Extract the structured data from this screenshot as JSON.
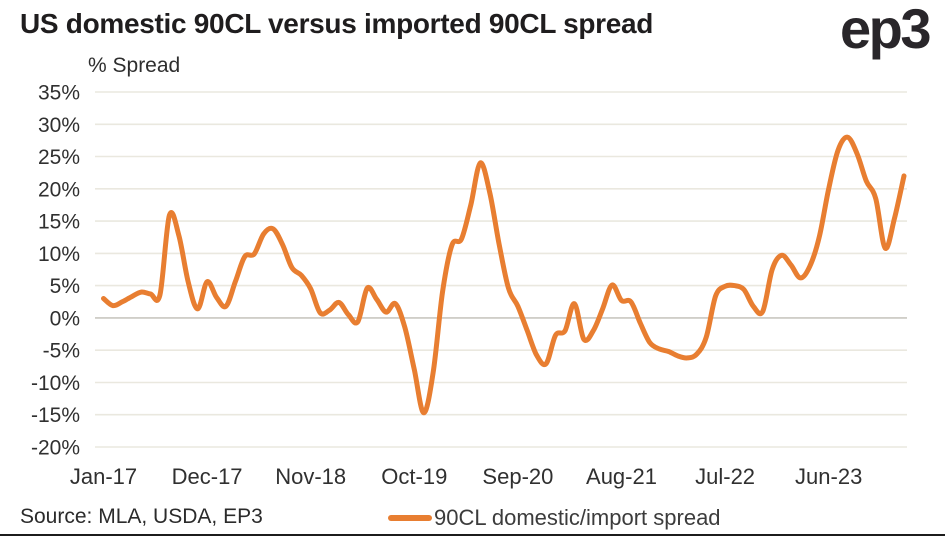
{
  "title": "US domestic 90CL versus imported 90CL spread",
  "logo_text": "ep3",
  "source_note": "Source: MLA, USDA, EP3",
  "legend": {
    "label": "90CL domestic/import spread"
  },
  "colors": {
    "line": "#E87E31",
    "grid": "#EAE8DF",
    "zero_line": "#C9C7C0",
    "axis_text": "#303030",
    "title_text": "#1F1D1E",
    "bottom_rule": "#1C1C1C"
  },
  "chart_data": {
    "type": "line",
    "title": "US domestic 90CL versus imported 90CL spread",
    "xlabel": "",
    "ylabel": "% Spread",
    "unit": "%",
    "ylim": [
      -20,
      35
    ],
    "ytick_step": 5,
    "grid": "horizontal",
    "legend_position": "bottom",
    "ytick_labels": [
      "35%",
      "30%",
      "25%",
      "20%",
      "15%",
      "10%",
      "5%",
      "0%",
      "-5%",
      "-10%",
      "-15%",
      "-20%"
    ],
    "xticks": {
      "indices": [
        0,
        11,
        22,
        33,
        44,
        55,
        66,
        77
      ],
      "labels": [
        "Jan-17",
        "Dec-17",
        "Nov-18",
        "Oct-19",
        "Sep-20",
        "Aug-21",
        "Jul-22",
        "Jun-23"
      ]
    },
    "x": [
      "Jan-17",
      "Feb-17",
      "Mar-17",
      "Apr-17",
      "May-17",
      "Jun-17",
      "Jul-17",
      "Aug-17",
      "Sep-17",
      "Oct-17",
      "Nov-17",
      "Dec-17",
      "Jan-18",
      "Feb-18",
      "Mar-18",
      "Apr-18",
      "May-18",
      "Jun-18",
      "Jul-18",
      "Aug-18",
      "Sep-18",
      "Oct-18",
      "Nov-18",
      "Dec-18",
      "Jan-19",
      "Feb-19",
      "Mar-19",
      "Apr-19",
      "May-19",
      "Jun-19",
      "Jul-19",
      "Aug-19",
      "Sep-19",
      "Oct-19",
      "Nov-19",
      "Dec-19",
      "Jan-20",
      "Feb-20",
      "Mar-20",
      "Apr-20",
      "May-20",
      "Jun-20",
      "Jul-20",
      "Aug-20",
      "Sep-20",
      "Oct-20",
      "Nov-20",
      "Dec-20",
      "Jan-21",
      "Feb-21",
      "Mar-21",
      "Apr-21",
      "May-21",
      "Jun-21",
      "Jul-21",
      "Aug-21",
      "Sep-21",
      "Oct-21",
      "Nov-21",
      "Dec-21",
      "Jan-22",
      "Feb-22",
      "Mar-22",
      "Apr-22",
      "May-22",
      "Jun-22",
      "Jul-22",
      "Aug-22",
      "Sep-22",
      "Oct-22",
      "Nov-22",
      "Dec-22",
      "Jan-23",
      "Feb-23",
      "Mar-23",
      "Apr-23",
      "May-23",
      "Jun-23",
      "Jul-23",
      "Aug-23",
      "Sep-23",
      "Oct-23",
      "Nov-23",
      "Dec-23",
      "Jan-24",
      "Feb-24"
    ],
    "series": [
      {
        "name": "90CL domestic/import spread",
        "color": "#E87E31",
        "values": [
          3.0,
          1.9,
          2.5,
          3.3,
          4.0,
          3.7,
          3.6,
          15.9,
          12.8,
          5.5,
          1.4,
          5.6,
          3.2,
          1.8,
          5.6,
          9.5,
          9.9,
          13.0,
          13.8,
          11.4,
          7.8,
          6.6,
          4.5,
          0.8,
          1.2,
          2.4,
          0.5,
          -0.6,
          4.6,
          2.9,
          0.9,
          2.2,
          -1.5,
          -8.0,
          -14.7,
          -8.5,
          4.0,
          11.3,
          12.2,
          17.5,
          24.0,
          19.5,
          11.5,
          4.6,
          1.8,
          -2.0,
          -5.8,
          -7.1,
          -2.7,
          -2.0,
          2.2,
          -3.3,
          -2.0,
          1.4,
          5.1,
          2.7,
          2.5,
          -0.8,
          -3.8,
          -4.8,
          -5.2,
          -5.9,
          -6.2,
          -5.6,
          -3.0,
          3.4,
          4.9,
          5.0,
          4.4,
          1.8,
          1.0,
          7.5,
          9.7,
          8.2,
          6.2,
          8.0,
          12.5,
          20.0,
          26.0,
          28.0,
          25.5,
          21.2,
          18.5,
          10.8,
          15.5,
          22.0
        ]
      }
    ]
  }
}
